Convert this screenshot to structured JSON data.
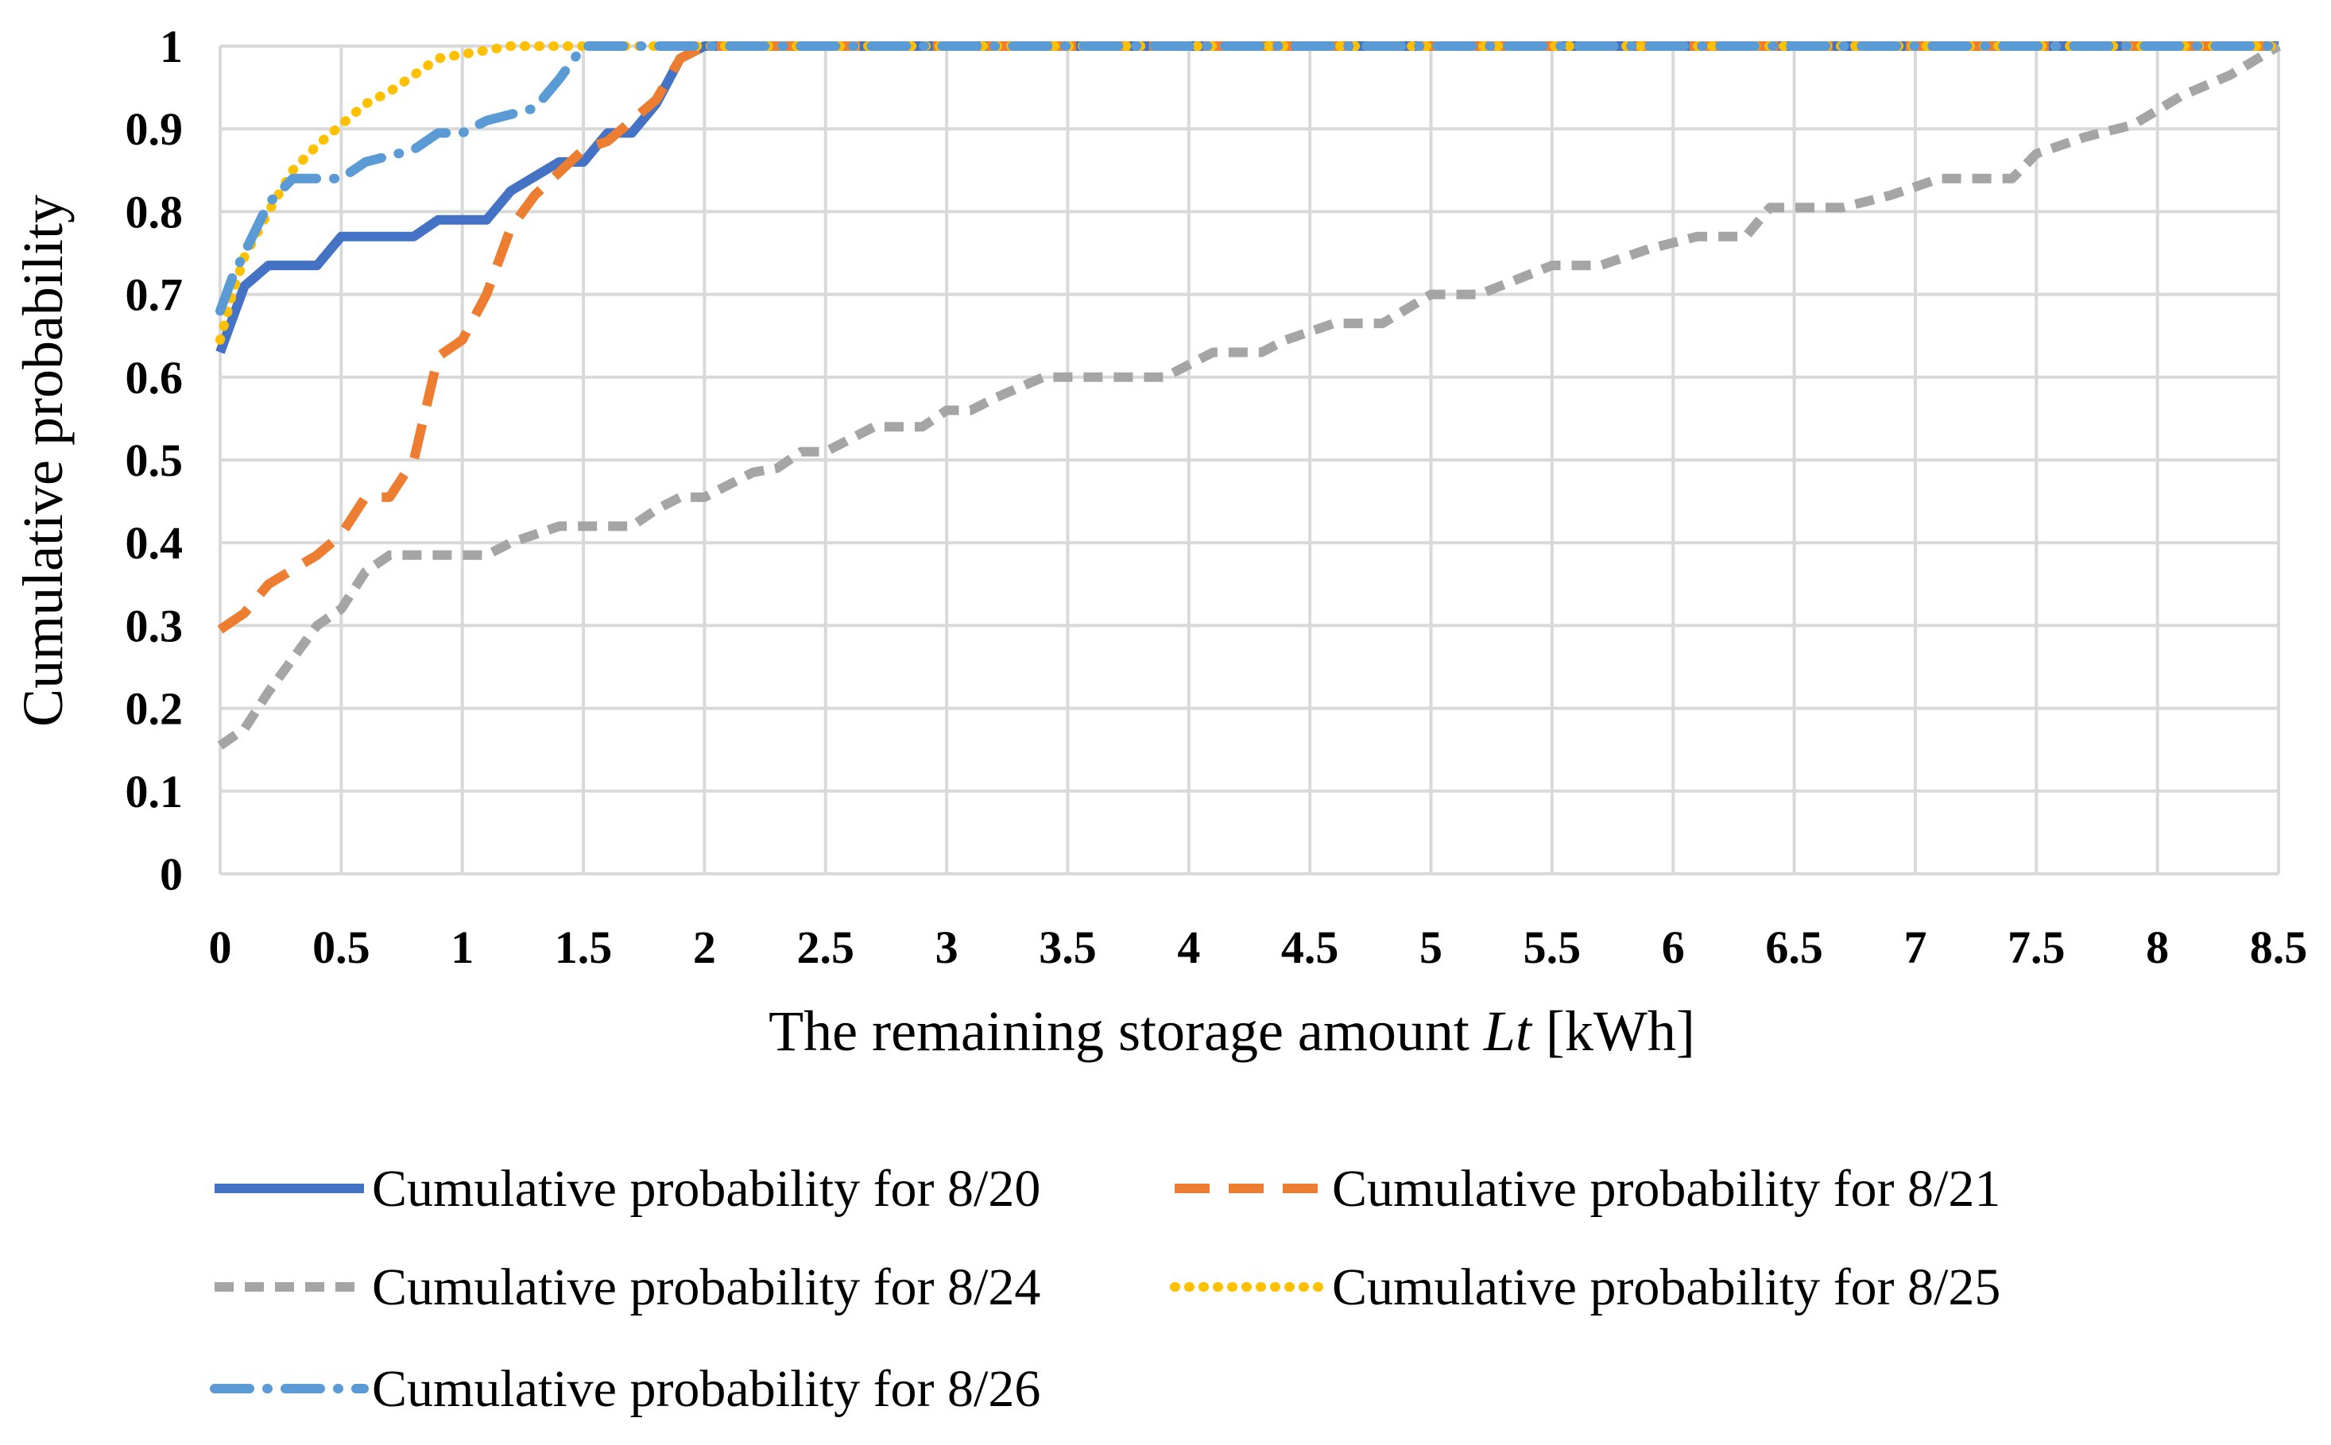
{
  "chart_data": {
    "type": "line",
    "title": "",
    "xlabel_prefix": "The remaining storage amount ",
    "xlabel_var": "Lt",
    "xlabel_suffix": " [kWh]",
    "ylabel": "Cumulative probability",
    "xlim": [
      0,
      8.5
    ],
    "ylim": [
      0,
      1
    ],
    "x_ticks": [
      "0",
      "0.5",
      "1",
      "1.5",
      "2",
      "2.5",
      "3",
      "3.5",
      "4",
      "4.5",
      "5",
      "5.5",
      "6",
      "6.5",
      "7",
      "7.5",
      "8",
      "8.5"
    ],
    "y_ticks": [
      "0",
      "0.1",
      "0.2",
      "0.3",
      "0.4",
      "0.5",
      "0.6",
      "0.7",
      "0.8",
      "0.9",
      "1"
    ],
    "grid": true,
    "legend_position": "bottom",
    "series": [
      {
        "name": "Cumulative probability for 8/20",
        "color": "#4472C4",
        "style": "solid",
        "points": [
          [
            0,
            0.63
          ],
          [
            0.1,
            0.71
          ],
          [
            0.2,
            0.735
          ],
          [
            0.4,
            0.735
          ],
          [
            0.5,
            0.77
          ],
          [
            0.8,
            0.77
          ],
          [
            0.9,
            0.79
          ],
          [
            1.1,
            0.79
          ],
          [
            1.2,
            0.825
          ],
          [
            1.4,
            0.86
          ],
          [
            1.5,
            0.86
          ],
          [
            1.6,
            0.895
          ],
          [
            1.7,
            0.895
          ],
          [
            1.8,
            0.93
          ],
          [
            1.9,
            0.985
          ],
          [
            2,
            1
          ],
          [
            8.5,
            1
          ]
        ]
      },
      {
        "name": "Cumulative probability for 8/21",
        "color": "#ED7D31",
        "style": "longdash",
        "points": [
          [
            0,
            0.295
          ],
          [
            0.1,
            0.315
          ],
          [
            0.2,
            0.35
          ],
          [
            0.4,
            0.385
          ],
          [
            0.5,
            0.41
          ],
          [
            0.6,
            0.455
          ],
          [
            0.7,
            0.455
          ],
          [
            0.8,
            0.5
          ],
          [
            0.9,
            0.625
          ],
          [
            1,
            0.645
          ],
          [
            1.1,
            0.7
          ],
          [
            1.2,
            0.78
          ],
          [
            1.3,
            0.82
          ],
          [
            1.5,
            0.875
          ],
          [
            1.6,
            0.885
          ],
          [
            1.8,
            0.935
          ],
          [
            1.9,
            0.985
          ],
          [
            2,
            1
          ],
          [
            8.5,
            1
          ]
        ]
      },
      {
        "name": "Cumulative probability for 8/24",
        "color": "#A5A5A5",
        "style": "dash",
        "points": [
          [
            0,
            0.155
          ],
          [
            0.1,
            0.175
          ],
          [
            0.2,
            0.22
          ],
          [
            0.4,
            0.3
          ],
          [
            0.5,
            0.32
          ],
          [
            0.6,
            0.365
          ],
          [
            0.7,
            0.385
          ],
          [
            1.1,
            0.385
          ],
          [
            1.2,
            0.4
          ],
          [
            1.4,
            0.42
          ],
          [
            1.7,
            0.42
          ],
          [
            1.8,
            0.44
          ],
          [
            1.9,
            0.455
          ],
          [
            2,
            0.455
          ],
          [
            2.2,
            0.485
          ],
          [
            2.3,
            0.49
          ],
          [
            2.4,
            0.51
          ],
          [
            2.5,
            0.51
          ],
          [
            2.7,
            0.54
          ],
          [
            2.9,
            0.54
          ],
          [
            3,
            0.56
          ],
          [
            3.1,
            0.56
          ],
          [
            3.2,
            0.575
          ],
          [
            3.4,
            0.6
          ],
          [
            3.9,
            0.6
          ],
          [
            4.1,
            0.63
          ],
          [
            4.3,
            0.63
          ],
          [
            4.4,
            0.645
          ],
          [
            4.6,
            0.665
          ],
          [
            4.8,
            0.665
          ],
          [
            5,
            0.7
          ],
          [
            5.2,
            0.7
          ],
          [
            5.5,
            0.735
          ],
          [
            5.7,
            0.735
          ],
          [
            5.9,
            0.755
          ],
          [
            6.1,
            0.77
          ],
          [
            6.3,
            0.77
          ],
          [
            6.4,
            0.805
          ],
          [
            6.7,
            0.805
          ],
          [
            6.9,
            0.82
          ],
          [
            7.1,
            0.84
          ],
          [
            7.4,
            0.84
          ],
          [
            7.5,
            0.87
          ],
          [
            7.7,
            0.89
          ],
          [
            7.9,
            0.905
          ],
          [
            8.1,
            0.94
          ],
          [
            8.3,
            0.965
          ],
          [
            8.5,
            1
          ]
        ]
      },
      {
        "name": "Cumulative probability for 8/25",
        "color": "#FFC000",
        "style": "dot",
        "points": [
          [
            0,
            0.645
          ],
          [
            0.05,
            0.7
          ],
          [
            0.1,
            0.745
          ],
          [
            0.2,
            0.8
          ],
          [
            0.3,
            0.85
          ],
          [
            0.4,
            0.88
          ],
          [
            0.5,
            0.905
          ],
          [
            0.6,
            0.93
          ],
          [
            0.7,
            0.945
          ],
          [
            0.8,
            0.965
          ],
          [
            0.9,
            0.985
          ],
          [
            1,
            0.99
          ],
          [
            1.1,
            0.995
          ],
          [
            1.2,
            1
          ],
          [
            1.5,
            1
          ],
          [
            8.5,
            1
          ]
        ]
      },
      {
        "name": "Cumulative probability for 8/26",
        "color": "#5B9BD5",
        "style": "longdashdot",
        "points": [
          [
            0,
            0.68
          ],
          [
            0.05,
            0.72
          ],
          [
            0.1,
            0.75
          ],
          [
            0.15,
            0.78
          ],
          [
            0.2,
            0.81
          ],
          [
            0.3,
            0.84
          ],
          [
            0.5,
            0.84
          ],
          [
            0.6,
            0.86
          ],
          [
            0.8,
            0.875
          ],
          [
            0.9,
            0.895
          ],
          [
            1,
            0.895
          ],
          [
            1.1,
            0.91
          ],
          [
            1.3,
            0.925
          ],
          [
            1.4,
            0.96
          ],
          [
            1.5,
            1
          ],
          [
            8.5,
            1
          ]
        ]
      }
    ]
  }
}
